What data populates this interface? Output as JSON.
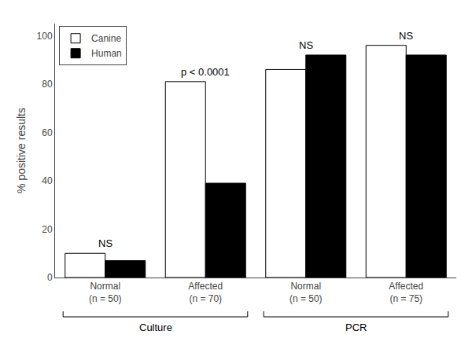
{
  "chart_data": {
    "type": "bar",
    "categories": [
      "Normal\n(n = 50)",
      "Affected\n(n = 70)",
      "Normal\n(n = 50)",
      "Affected\n(n = 75)"
    ],
    "category_groups": [
      "Culture",
      "Culture",
      "PCR",
      "PCR"
    ],
    "series": [
      {
        "name": "Canine",
        "color": "#ffffff",
        "values": [
          10,
          81,
          86,
          96
        ]
      },
      {
        "name": "Human",
        "color": "#000000",
        "values": [
          7,
          39,
          92,
          92
        ]
      }
    ],
    "annotations": [
      "NS",
      "p < 0.0001",
      "NS",
      "NS"
    ],
    "ylabel": "% positive results",
    "ylim": [
      0,
      105
    ],
    "yticks": [
      0,
      20,
      40,
      60,
      80,
      100
    ],
    "grid": false,
    "legend": "upper left"
  }
}
